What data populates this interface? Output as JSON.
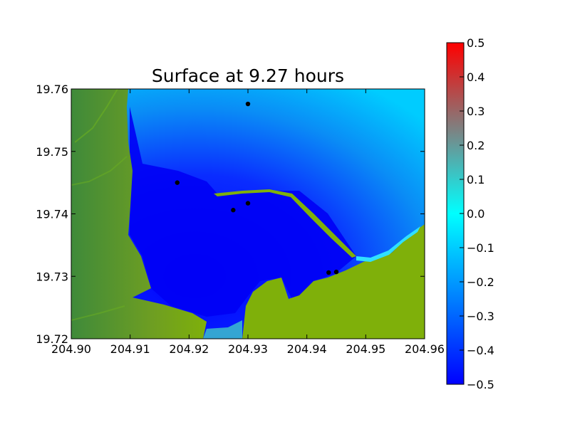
{
  "chart_data": {
    "type": "heatmap",
    "title": "Surface at 9.27 hours",
    "xlabel": "",
    "ylabel": "",
    "xlim": [
      204.9,
      204.96
    ],
    "ylim": [
      19.72,
      19.76
    ],
    "x_ticks": [
      "204.90",
      "204.91",
      "204.92",
      "204.93",
      "204.94",
      "204.95",
      "204.96"
    ],
    "y_ticks": [
      "19.72",
      "19.73",
      "19.74",
      "19.75",
      "19.76"
    ],
    "grid": false,
    "colorbar": {
      "vmin": -0.5,
      "vmax": 0.5,
      "ticks": [
        "0.5",
        "0.4",
        "0.3",
        "0.2",
        "0.1",
        "0.0",
        "−0.1",
        "−0.2",
        "−0.3",
        "−0.4",
        "−0.5"
      ],
      "colors": [
        "#0000ff",
        "#00ffff",
        "#ff0000"
      ]
    },
    "land_colors": [
      "#3f8a3a",
      "#7faf0a"
    ],
    "gauges": [
      {
        "x": 204.93,
        "y": 19.7576
      },
      {
        "x": 204.918,
        "y": 19.745
      },
      {
        "x": 204.93,
        "y": 19.7417
      },
      {
        "x": 204.9275,
        "y": 19.7406
      },
      {
        "x": 204.9437,
        "y": 19.7306
      },
      {
        "x": 204.945,
        "y": 19.7307
      }
    ]
  }
}
